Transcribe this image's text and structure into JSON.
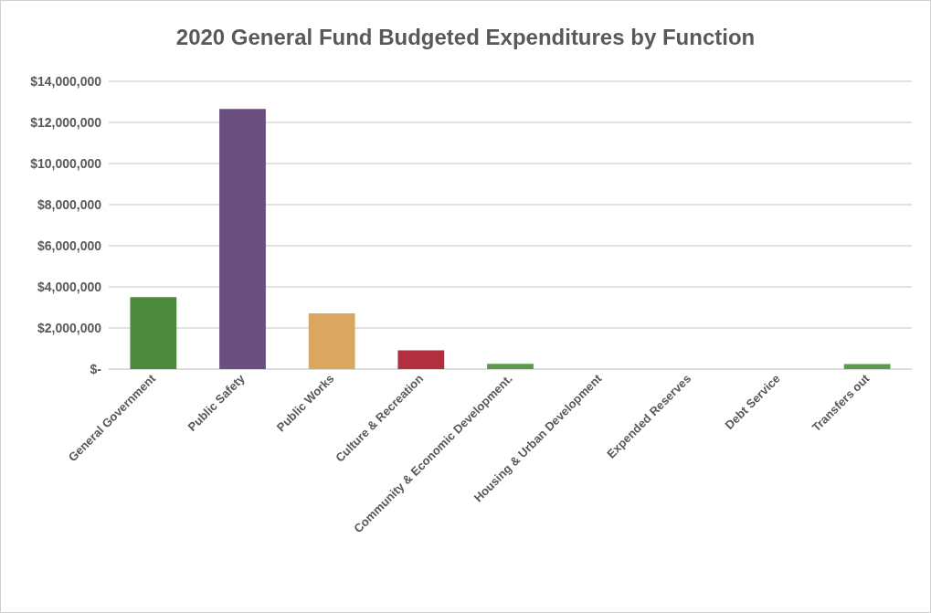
{
  "chart_data": {
    "type": "bar",
    "title": "2020 General Fund Budgeted Expenditures by Function",
    "categories": [
      "General Government",
      "Public Safety",
      "Public Works",
      "Culture & Recreation",
      "Community & Economic Development.",
      "Housing & Urban Development",
      "Expended Reserves",
      "Debt Service",
      "Transfers out"
    ],
    "values": [
      3500000,
      12660000,
      2710000,
      910000,
      260000,
      0,
      0,
      0,
      240000
    ],
    "colors": [
      "#4e8a3e",
      "#6a4f80",
      "#d9a75f",
      "#b03040",
      "#5a9a4a",
      "#5a9a4a",
      "#5a9a4a",
      "#5a9a4a",
      "#5a9a4a"
    ],
    "ylim": [
      0,
      14000000
    ],
    "yticks": [
      {
        "value": 0,
        "label": "$-"
      },
      {
        "value": 2000000,
        "label": "$2,000,000"
      },
      {
        "value": 4000000,
        "label": "$4,000,000"
      },
      {
        "value": 6000000,
        "label": "$6,000,000"
      },
      {
        "value": 8000000,
        "label": "$8,000,000"
      },
      {
        "value": 10000000,
        "label": "$10,000,000"
      },
      {
        "value": 12000000,
        "label": "$12,000,000"
      },
      {
        "value": 14000000,
        "label": "$14,000,000"
      }
    ],
    "grid": "y"
  }
}
